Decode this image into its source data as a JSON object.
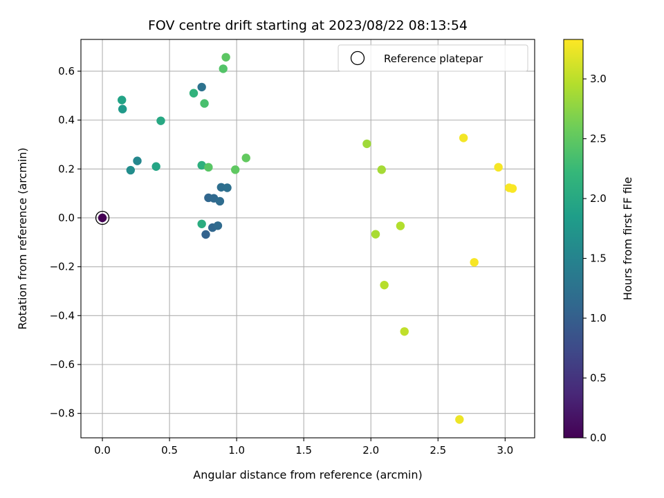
{
  "chart_data": {
    "type": "scatter",
    "title": "FOV centre drift starting at 2023/08/22 08:13:54",
    "xlabel": "Angular distance from reference (arcmin)",
    "ylabel": "Rotation from reference (arcmin)",
    "xlim": [
      -0.16,
      3.22
    ],
    "ylim": [
      -0.9,
      0.73
    ],
    "xticks": [
      0.0,
      0.5,
      1.0,
      1.5,
      2.0,
      2.5,
      3.0
    ],
    "xtick_labels": [
      "0.0",
      "0.5",
      "1.0",
      "1.5",
      "2.0",
      "2.5",
      "3.0"
    ],
    "yticks": [
      -0.8,
      -0.6,
      -0.4,
      -0.2,
      0.0,
      0.2,
      0.4,
      0.6
    ],
    "ytick_labels": [
      "−0.8",
      "−0.6",
      "−0.4",
      "−0.2",
      "0.0",
      "0.2",
      "0.4",
      "0.6"
    ],
    "grid": true,
    "legend": {
      "placement": "top-right",
      "entries": [
        "Reference platepar"
      ]
    },
    "colorbar": {
      "label": "Hours from first FF file",
      "range": [
        0.0,
        3.33
      ],
      "ticks": [
        0.0,
        0.5,
        1.0,
        1.5,
        2.0,
        2.5,
        3.0
      ],
      "tick_labels": [
        "0.0",
        "0.5",
        "1.0",
        "1.5",
        "2.0",
        "2.5",
        "3.0"
      ],
      "colormap": "viridis"
    },
    "reference_point": {
      "x": 0.0,
      "y": 0.0
    },
    "points": [
      {
        "x": 0.0,
        "y": 0.0,
        "hours": 0.0
      },
      {
        "x": 0.77,
        "y": -0.068,
        "hours": 1.05
      },
      {
        "x": 0.82,
        "y": -0.04,
        "hours": 1.1
      },
      {
        "x": 0.86,
        "y": -0.032,
        "hours": 1.15
      },
      {
        "x": 0.79,
        "y": 0.082,
        "hours": 1.1
      },
      {
        "x": 0.83,
        "y": 0.08,
        "hours": 1.13
      },
      {
        "x": 0.875,
        "y": 0.068,
        "hours": 1.17
      },
      {
        "x": 0.885,
        "y": 0.125,
        "hours": 1.2
      },
      {
        "x": 0.93,
        "y": 0.123,
        "hours": 1.22
      },
      {
        "x": 0.74,
        "y": 0.535,
        "hours": 1.25
      },
      {
        "x": 0.26,
        "y": 0.233,
        "hours": 1.55
      },
      {
        "x": 0.21,
        "y": 0.195,
        "hours": 1.62
      },
      {
        "x": 0.15,
        "y": 0.445,
        "hours": 1.8
      },
      {
        "x": 0.145,
        "y": 0.482,
        "hours": 1.92
      },
      {
        "x": 0.4,
        "y": 0.21,
        "hours": 1.95
      },
      {
        "x": 0.435,
        "y": 0.397,
        "hours": 2.0
      },
      {
        "x": 0.74,
        "y": -0.025,
        "hours": 2.05
      },
      {
        "x": 0.74,
        "y": 0.215,
        "hours": 2.1
      },
      {
        "x": 0.68,
        "y": 0.51,
        "hours": 2.15
      },
      {
        "x": 0.76,
        "y": 0.468,
        "hours": 2.35
      },
      {
        "x": 0.79,
        "y": 0.207,
        "hours": 2.45
      },
      {
        "x": 0.9,
        "y": 0.61,
        "hours": 2.42
      },
      {
        "x": 0.92,
        "y": 0.657,
        "hours": 2.48
      },
      {
        "x": 0.99,
        "y": 0.197,
        "hours": 2.5
      },
      {
        "x": 1.07,
        "y": 0.245,
        "hours": 2.52
      },
      {
        "x": 1.97,
        "y": 0.303,
        "hours": 2.85
      },
      {
        "x": 2.08,
        "y": 0.197,
        "hours": 2.88
      },
      {
        "x": 2.035,
        "y": -0.067,
        "hours": 2.9
      },
      {
        "x": 2.22,
        "y": -0.033,
        "hours": 2.95
      },
      {
        "x": 2.1,
        "y": -0.275,
        "hours": 2.97
      },
      {
        "x": 2.25,
        "y": -0.465,
        "hours": 3.02
      },
      {
        "x": 2.66,
        "y": -0.825,
        "hours": 3.25
      },
      {
        "x": 2.69,
        "y": 0.327,
        "hours": 3.28
      },
      {
        "x": 2.95,
        "y": 0.207,
        "hours": 3.29
      },
      {
        "x": 3.03,
        "y": 0.123,
        "hours": 3.3
      },
      {
        "x": 3.055,
        "y": 0.12,
        "hours": 3.31
      },
      {
        "x": 2.77,
        "y": -0.182,
        "hours": 3.3
      }
    ]
  }
}
